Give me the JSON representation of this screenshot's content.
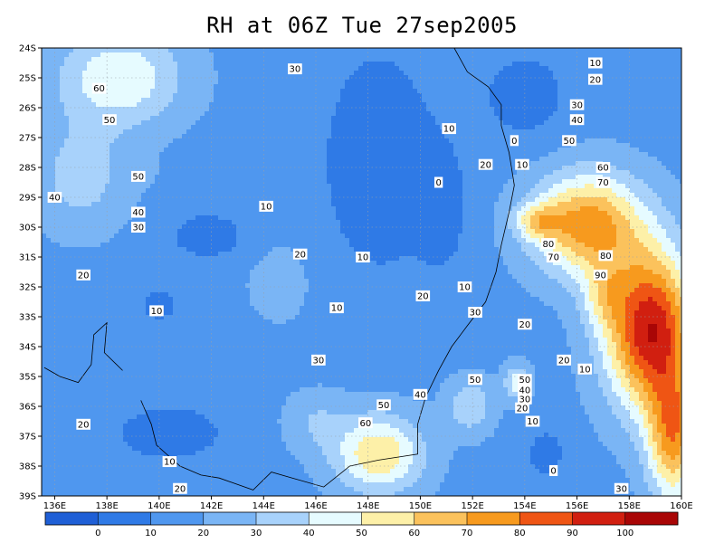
{
  "chart_data": {
    "type": "heatmap",
    "title": "RH at 06Z Tue 27sep2005",
    "x_ticks": [
      "136E",
      "138E",
      "140E",
      "142E",
      "144E",
      "146E",
      "148E",
      "150E",
      "152E",
      "154E",
      "156E",
      "158E",
      "160E"
    ],
    "y_ticks": [
      "24S",
      "25S",
      "26S",
      "27S",
      "28S",
      "29S",
      "30S",
      "31S",
      "32S",
      "33S",
      "34S",
      "35S",
      "36S",
      "37S",
      "38S",
      "39S"
    ],
    "xlim": [
      135.5,
      160
    ],
    "ylim": [
      -39,
      -24
    ],
    "grid": true,
    "colorbar": {
      "labels": [
        "0",
        "10",
        "20",
        "30",
        "40",
        "50",
        "60",
        "70",
        "80",
        "90",
        "100"
      ],
      "colors": [
        "#1f5fd6",
        "#2f7ae6",
        "#4f97ef",
        "#7ab5f5",
        "#a8d2fb",
        "#e6fbff",
        "#fdf0a8",
        "#fbc25c",
        "#f79a1e",
        "#ef5514",
        "#d11f10",
        "#a90606"
      ]
    },
    "contour_labels": [
      {
        "text": "60",
        "lon": 137.7,
        "lat": -25.35
      },
      {
        "text": "50",
        "lon": 138.1,
        "lat": -26.4
      },
      {
        "text": "50",
        "lon": 139.2,
        "lat": -28.3
      },
      {
        "text": "40",
        "lon": 136.0,
        "lat": -29.0
      },
      {
        "text": "40",
        "lon": 139.2,
        "lat": -29.5
      },
      {
        "text": "30",
        "lon": 139.2,
        "lat": -30.0
      },
      {
        "text": "30",
        "lon": 145.2,
        "lat": -24.7
      },
      {
        "text": "20",
        "lon": 137.1,
        "lat": -31.6
      },
      {
        "text": "10",
        "lon": 139.9,
        "lat": -32.8
      },
      {
        "text": "10",
        "lon": 144.1,
        "lat": -29.3
      },
      {
        "text": "20",
        "lon": 145.4,
        "lat": -30.9
      },
      {
        "text": "10",
        "lon": 147.8,
        "lat": -31.0
      },
      {
        "text": "10",
        "lon": 146.8,
        "lat": -32.7
      },
      {
        "text": "20",
        "lon": 150.1,
        "lat": -32.3
      },
      {
        "text": "10",
        "lon": 151.7,
        "lat": -32.0
      },
      {
        "text": "10",
        "lon": 151.1,
        "lat": -26.7
      },
      {
        "text": "0",
        "lon": 150.7,
        "lat": -28.5
      },
      {
        "text": "0",
        "lon": 153.6,
        "lat": -27.1
      },
      {
        "text": "20",
        "lon": 152.5,
        "lat": -27.9
      },
      {
        "text": "10",
        "lon": 153.9,
        "lat": -27.9
      },
      {
        "text": "10",
        "lon": 156.7,
        "lat": -24.5
      },
      {
        "text": "20",
        "lon": 156.7,
        "lat": -25.05
      },
      {
        "text": "30",
        "lon": 156.0,
        "lat": -25.9
      },
      {
        "text": "40",
        "lon": 156.0,
        "lat": -26.4
      },
      {
        "text": "50",
        "lon": 155.7,
        "lat": -27.1
      },
      {
        "text": "60",
        "lon": 157.0,
        "lat": -28.0
      },
      {
        "text": "70",
        "lon": 157.0,
        "lat": -28.5
      },
      {
        "text": "80",
        "lon": 154.9,
        "lat": -30.55
      },
      {
        "text": "70",
        "lon": 155.1,
        "lat": -31.0
      },
      {
        "text": "80",
        "lon": 157.1,
        "lat": -30.95
      },
      {
        "text": "90",
        "lon": 156.9,
        "lat": -31.6
      },
      {
        "text": "30",
        "lon": 152.1,
        "lat": -32.85
      },
      {
        "text": "20",
        "lon": 154.0,
        "lat": -33.25
      },
      {
        "text": "20",
        "lon": 155.5,
        "lat": -34.45
      },
      {
        "text": "10",
        "lon": 156.3,
        "lat": -34.75
      },
      {
        "text": "30",
        "lon": 146.1,
        "lat": -34.45
      },
      {
        "text": "50",
        "lon": 152.1,
        "lat": -35.1
      },
      {
        "text": "40",
        "lon": 150.0,
        "lat": -35.6
      },
      {
        "text": "50",
        "lon": 148.6,
        "lat": -35.95
      },
      {
        "text": "60",
        "lon": 147.9,
        "lat": -36.55
      },
      {
        "text": "50",
        "lon": 154.0,
        "lat": -35.1
      },
      {
        "text": "40",
        "lon": 154.0,
        "lat": -35.45
      },
      {
        "text": "30",
        "lon": 154.0,
        "lat": -35.75
      },
      {
        "text": "20",
        "lon": 153.9,
        "lat": -36.05
      },
      {
        "text": "10",
        "lon": 154.3,
        "lat": -36.5
      },
      {
        "text": "20",
        "lon": 137.1,
        "lat": -36.6
      },
      {
        "text": "10",
        "lon": 140.4,
        "lat": -37.85
      },
      {
        "text": "20",
        "lon": 140.8,
        "lat": -38.75
      },
      {
        "text": "0",
        "lon": 155.1,
        "lat": -38.15
      },
      {
        "text": "30",
        "lon": 157.7,
        "lat": -38.75
      }
    ]
  }
}
